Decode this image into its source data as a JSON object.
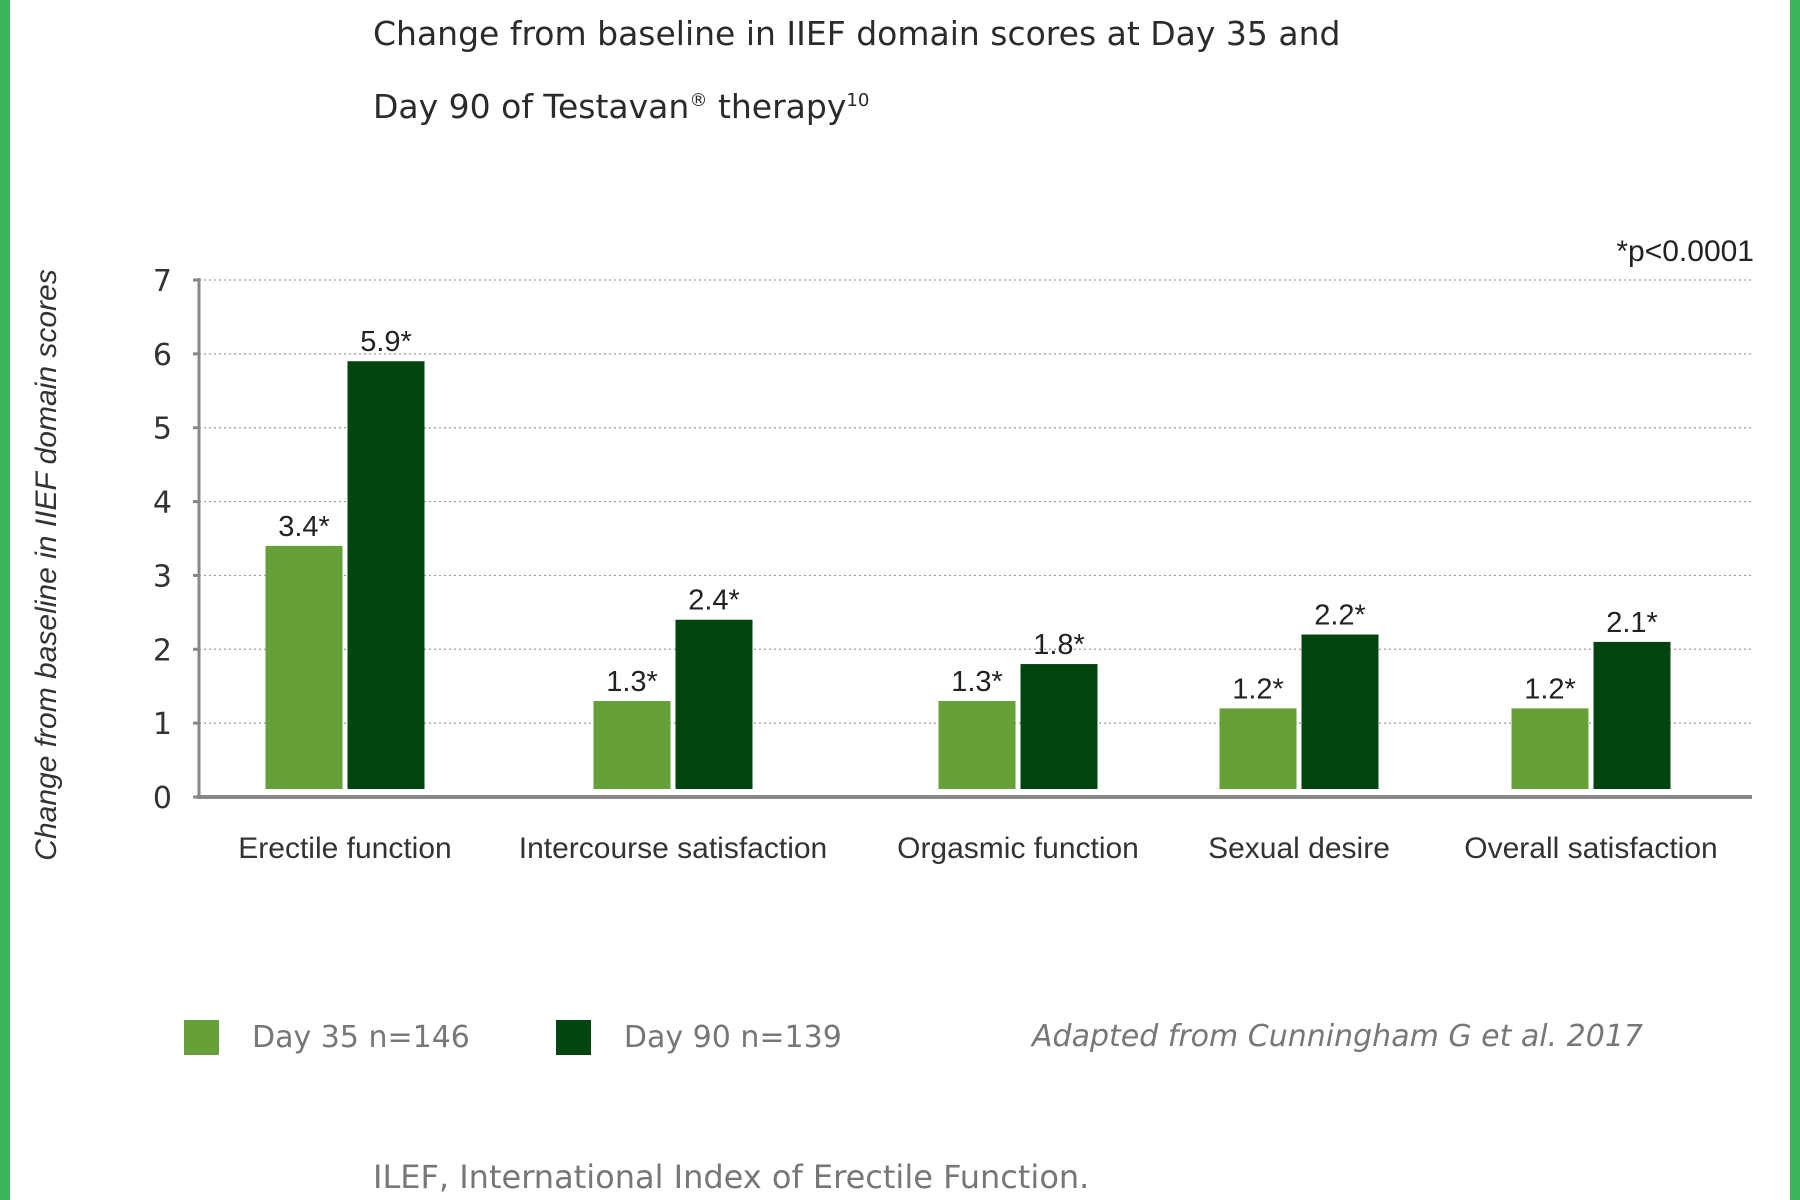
{
  "title_line1": "Change from baseline in IIEF domain scores at Day 35 and",
  "title_line2": "Day 90 of Testavan",
  "title_sup_reg": "®",
  "title_line2_rest": " therapy",
  "title_sup_ref": "10",
  "significance_note": "*p<0.0001",
  "chart_data": {
    "type": "bar",
    "ylabel": "Change from baseline in IIEF domain scores",
    "xlabel": "",
    "ylim": [
      0,
      7
    ],
    "yticks": [
      0,
      1,
      2,
      3,
      4,
      5,
      6,
      7
    ],
    "grid": true,
    "categories": [
      "Erectile function",
      "Intercourse satisfaction",
      "Orgasmic function",
      "Sexual desire",
      "Overall satisfaction"
    ],
    "series": [
      {
        "name": "Day 35 n=146",
        "color": "#66a038",
        "values": [
          3.4,
          1.3,
          1.3,
          1.2,
          1.2
        ],
        "labels": [
          "3.4*",
          "1.3*",
          "1.3*",
          "1.2*",
          "1.2*"
        ]
      },
      {
        "name": "Day 90 n=139",
        "color": "#00450f",
        "values": [
          5.9,
          2.4,
          1.8,
          2.2,
          2.1
        ],
        "labels": [
          "5.9*",
          "2.4*",
          "1.8*",
          "2.2*",
          "2.1*"
        ]
      }
    ],
    "legend_position": "bottom"
  },
  "source": "Adapted from Cunningham G et al. 2017",
  "footnote": "ILEF, International Index of Erectile Function."
}
